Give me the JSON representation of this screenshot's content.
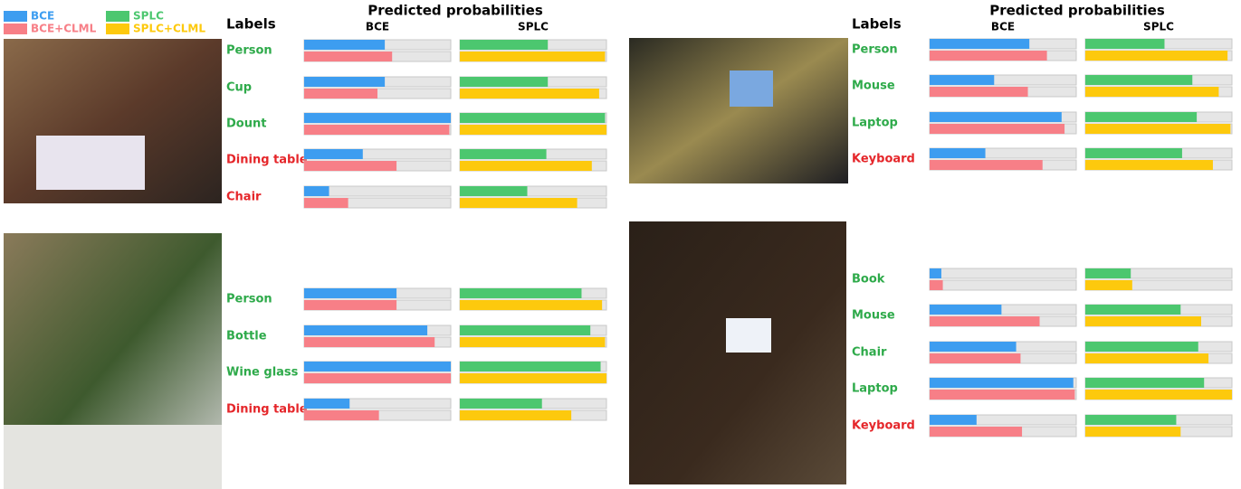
{
  "chart_data": [
    {
      "type": "bar",
      "title": "Predicted probabilities",
      "category_axis_label": "Labels",
      "group_labels": [
        "BCE",
        "SPLC"
      ],
      "xlim": [
        0,
        1
      ],
      "categories": [
        "Person",
        "Cup",
        "Dount",
        "Dining table",
        "Chair"
      ],
      "category_colors": [
        "#2eaa4a",
        "#2eaa4a",
        "#2eaa4a",
        "#e5262a",
        "#e5262a"
      ],
      "series": [
        {
          "name": "BCE",
          "color": "#3d9df0",
          "values": [
            0.55,
            0.55,
            1.0,
            0.4,
            0.17
          ]
        },
        {
          "name": "BCE+CLML",
          "color": "#f77f87",
          "values": [
            0.6,
            0.5,
            0.99,
            0.63,
            0.3
          ]
        },
        {
          "name": "SPLC",
          "color": "#4cc76f",
          "values": [
            0.6,
            0.6,
            0.99,
            0.59,
            0.46
          ]
        },
        {
          "name": "SPLC+CLML",
          "color": "#fdc90d",
          "values": [
            0.99,
            0.95,
            1.0,
            0.9,
            0.8
          ]
        }
      ]
    },
    {
      "type": "bar",
      "title": "Predicted probabilities",
      "category_axis_label": "Labels",
      "group_labels": [
        "BCE",
        "SPLC"
      ],
      "xlim": [
        0,
        1
      ],
      "categories": [
        "Person",
        "Mouse",
        "Laptop",
        "Keyboard"
      ],
      "category_colors": [
        "#2eaa4a",
        "#2eaa4a",
        "#2eaa4a",
        "#e5262a"
      ],
      "series": [
        {
          "name": "BCE",
          "color": "#3d9df0",
          "values": [
            0.68,
            0.44,
            0.9,
            0.38
          ]
        },
        {
          "name": "BCE+CLML",
          "color": "#f77f87",
          "values": [
            0.8,
            0.67,
            0.92,
            0.77
          ]
        },
        {
          "name": "SPLC",
          "color": "#4cc76f",
          "values": [
            0.54,
            0.73,
            0.76,
            0.66
          ]
        },
        {
          "name": "SPLC+CLML",
          "color": "#fdc90d",
          "values": [
            0.97,
            0.91,
            0.99,
            0.87
          ]
        }
      ]
    },
    {
      "type": "bar",
      "xlim": [
        0,
        1
      ],
      "categories": [
        "Person",
        "Bottle",
        "Wine glass",
        "Dining table"
      ],
      "category_colors": [
        "#2eaa4a",
        "#2eaa4a",
        "#2eaa4a",
        "#e5262a"
      ],
      "series": [
        {
          "name": "BCE",
          "color": "#3d9df0",
          "values": [
            0.63,
            0.84,
            1.0,
            0.31
          ]
        },
        {
          "name": "BCE+CLML",
          "color": "#f77f87",
          "values": [
            0.63,
            0.89,
            1.0,
            0.51
          ]
        },
        {
          "name": "SPLC",
          "color": "#4cc76f",
          "values": [
            0.83,
            0.89,
            0.96,
            0.56
          ]
        },
        {
          "name": "SPLC+CLML",
          "color": "#fdc90d",
          "values": [
            0.97,
            0.99,
            1.0,
            0.76
          ]
        }
      ]
    },
    {
      "type": "bar",
      "xlim": [
        0,
        1
      ],
      "categories": [
        "Book",
        "Mouse",
        "Chair",
        "Laptop",
        "Keyboard"
      ],
      "category_colors": [
        "#2eaa4a",
        "#2eaa4a",
        "#2eaa4a",
        "#2eaa4a",
        "#e5262a"
      ],
      "series": [
        {
          "name": "BCE",
          "color": "#3d9df0",
          "values": [
            0.08,
            0.49,
            0.59,
            0.98,
            0.32
          ]
        },
        {
          "name": "BCE+CLML",
          "color": "#f77f87",
          "values": [
            0.09,
            0.75,
            0.62,
            0.99,
            0.63
          ]
        },
        {
          "name": "SPLC",
          "color": "#4cc76f",
          "values": [
            0.31,
            0.65,
            0.77,
            0.81,
            0.62
          ]
        },
        {
          "name": "SPLC+CLML",
          "color": "#fdc90d",
          "values": [
            0.32,
            0.79,
            0.84,
            1.0,
            0.65
          ]
        }
      ]
    }
  ]
}
